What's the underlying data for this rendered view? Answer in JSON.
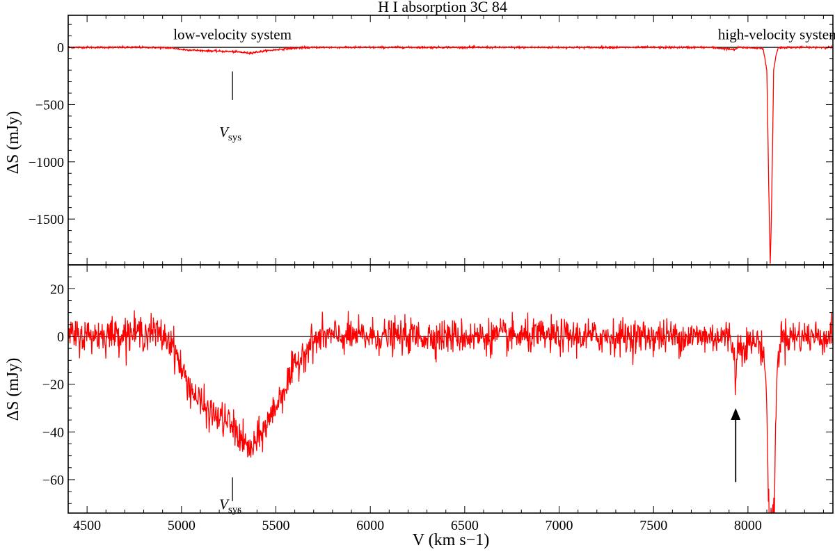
{
  "chart_data": [
    {
      "type": "line",
      "panel": "top",
      "title": "H I absorption 3C 84",
      "ylabel": "ΔS (mJy)",
      "xlabel": "",
      "xlim": [
        4400,
        8450
      ],
      "ylim": [
        -1900,
        280
      ],
      "x_ticks": [
        4500,
        5000,
        5500,
        6000,
        6500,
        7000,
        7500,
        8000
      ],
      "y_ticks": [
        0,
        -500,
        -1000,
        -1500
      ],
      "y_tick_labels": [
        "0",
        "−500",
        "−1000",
        "−1500"
      ],
      "grid": false,
      "series": [
        {
          "color": "#ff0000",
          "points": [
            [
              4400,
              0
            ],
            [
              4800,
              0
            ],
            [
              4950,
              -5
            ],
            [
              5000,
              -18
            ],
            [
              5100,
              -28
            ],
            [
              5200,
              -33
            ],
            [
              5300,
              -40
            ],
            [
              5360,
              -50
            ],
            [
              5450,
              -30
            ],
            [
              5550,
              -12
            ],
            [
              5650,
              -3
            ],
            [
              5750,
              0
            ],
            [
              7800,
              0
            ],
            [
              7930,
              -20
            ],
            [
              7950,
              0
            ],
            [
              8080,
              -8
            ],
            [
              8100,
              -200
            ],
            [
              8110,
              -1200
            ],
            [
              8118,
              -1890
            ],
            [
              8124,
              -1500
            ],
            [
              8130,
              -900
            ],
            [
              8136,
              -200
            ],
            [
              8150,
              -60
            ],
            [
              8160,
              -5
            ],
            [
              8200,
              0
            ],
            [
              8450,
              0
            ]
          ]
        }
      ],
      "reference_line_y": 0,
      "annotations": [
        {
          "text": "low-velocity system",
          "x": 5270,
          "y": 120
        },
        {
          "text": "high-velocity systems",
          "x": 8180,
          "y": 120
        },
        {
          "text_main": "V",
          "text_sub": "sys",
          "x": 5270,
          "y": -650,
          "marker_x": 5270,
          "marker_y": [
            -210,
            -460
          ]
        }
      ]
    },
    {
      "type": "line",
      "panel": "bottom",
      "title": "",
      "ylabel": "ΔS (mJy)",
      "xlabel": "V (km s−1)",
      "xlim": [
        4400,
        8450
      ],
      "ylim": [
        -74,
        30
      ],
      "x_ticks": [
        4500,
        5000,
        5500,
        6000,
        6500,
        7000,
        7500,
        8000
      ],
      "x_tick_labels": [
        "4500",
        "5000",
        "5500",
        "6000",
        "6500",
        "7000",
        "7500",
        "8000"
      ],
      "y_ticks": [
        20,
        0,
        -20,
        -40,
        -60
      ],
      "y_tick_labels": [
        "20",
        "0",
        "−20",
        "−40",
        "−60"
      ],
      "grid": false,
      "series": [
        {
          "color": "#ff0000",
          "noise_amplitude": 4,
          "profile": [
            [
              4400,
              0
            ],
            [
              4850,
              2
            ],
            [
              4950,
              -2
            ],
            [
              5000,
              -14
            ],
            [
              5050,
              -22
            ],
            [
              5100,
              -28
            ],
            [
              5150,
              -32
            ],
            [
              5200,
              -34
            ],
            [
              5250,
              -36
            ],
            [
              5300,
              -41
            ],
            [
              5350,
              -47
            ],
            [
              5375,
              -47
            ],
            [
              5400,
              -44
            ],
            [
              5450,
              -37
            ],
            [
              5500,
              -29
            ],
            [
              5550,
              -21
            ],
            [
              5600,
              -13
            ],
            [
              5650,
              -6
            ],
            [
              5700,
              -2
            ],
            [
              5750,
              0
            ],
            [
              7900,
              0
            ],
            [
              7925,
              -4
            ],
            [
              7935,
              -21
            ],
            [
              7945,
              -4
            ],
            [
              8060,
              -2
            ],
            [
              8090,
              -10
            ],
            [
              8100,
              -30
            ],
            [
              8110,
              -74
            ],
            [
              8130,
              -74
            ],
            [
              8140,
              -74
            ],
            [
              8148,
              -30
            ],
            [
              8160,
              -8
            ],
            [
              8175,
              0
            ],
            [
              8450,
              0
            ]
          ]
        }
      ],
      "reference_line_y": 0,
      "annotations": [
        {
          "text_main": "V",
          "text_sub": "sys",
          "x": 5270,
          "y": -66,
          "marker_x": 5270,
          "marker_y": [
            -59,
            -69
          ]
        },
        {
          "type": "arrow",
          "x": 7935,
          "y_from": -61,
          "y_to": -30
        }
      ]
    }
  ]
}
